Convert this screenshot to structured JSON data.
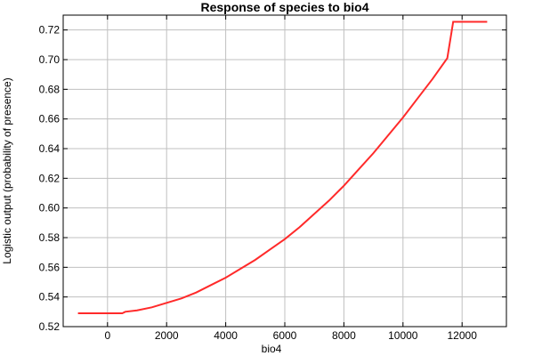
{
  "chart_data": {
    "type": "line",
    "title": "Response of species to bio4",
    "xlabel": "bio4",
    "ylabel": "Logistic output (probability of presence)",
    "xlim": [
      -1500,
      13500
    ],
    "ylim": [
      0.52,
      0.73
    ],
    "x_ticks": [
      0,
      2000,
      4000,
      6000,
      8000,
      10000,
      12000
    ],
    "y_ticks": [
      0.52,
      0.54,
      0.56,
      0.58,
      0.6,
      0.62,
      0.64,
      0.66,
      0.68,
      0.7,
      0.72
    ],
    "x_tick_labels": [
      "0",
      "2000",
      "4000",
      "6000",
      "8000",
      "10000",
      "12000"
    ],
    "y_tick_labels": [
      "0.52",
      "0.54",
      "0.56",
      "0.58",
      "0.60",
      "0.62",
      "0.64",
      "0.66",
      "0.68",
      "0.70",
      "0.72"
    ],
    "grid": true,
    "line_color": "#ff2a2a",
    "series": [
      {
        "x": [
          -1000,
          0,
          500,
          600,
          1000,
          1500,
          2000,
          2500,
          3000,
          3500,
          4000,
          4500,
          5000,
          5500,
          6000,
          6500,
          7000,
          7500,
          8000,
          8500,
          9000,
          9500,
          10000,
          10500,
          11000,
          11500,
          11700,
          12000,
          12500,
          12850
        ],
        "y": [
          0.529,
          0.529,
          0.529,
          0.53,
          0.531,
          0.533,
          0.536,
          0.539,
          0.543,
          0.548,
          0.553,
          0.559,
          0.565,
          0.572,
          0.579,
          0.587,
          0.596,
          0.605,
          0.615,
          0.626,
          0.637,
          0.649,
          0.661,
          0.674,
          0.687,
          0.701,
          0.7255,
          0.7255,
          0.7255,
          0.7255
        ]
      }
    ]
  }
}
